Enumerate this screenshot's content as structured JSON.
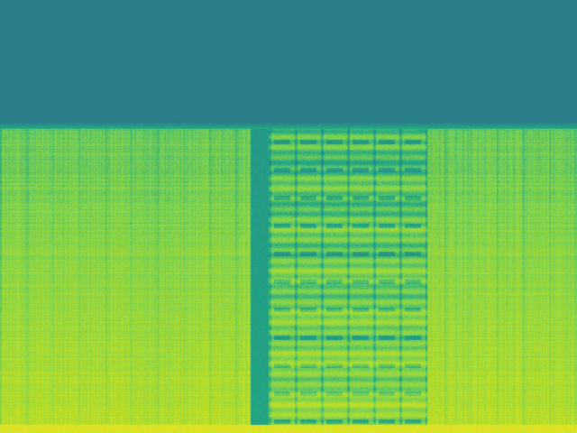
{
  "image": {
    "kind": "spectrogram",
    "colormap": "viridis",
    "colors": {
      "silent_band": "#2a7f8a",
      "low_energy": "#22a884",
      "mid_energy": "#7ad151",
      "high_energy": "#bddf26",
      "peak_energy": "#d2e21b",
      "gap_column": "#2a968c"
    },
    "energy_profile": {
      "silent_top_fraction": 0.29,
      "gap_start_fraction": 0.434,
      "gap_end_fraction": 0.466,
      "pattern_region_start_fraction": 0.466,
      "pattern_region_end_fraction": 0.74
    }
  }
}
